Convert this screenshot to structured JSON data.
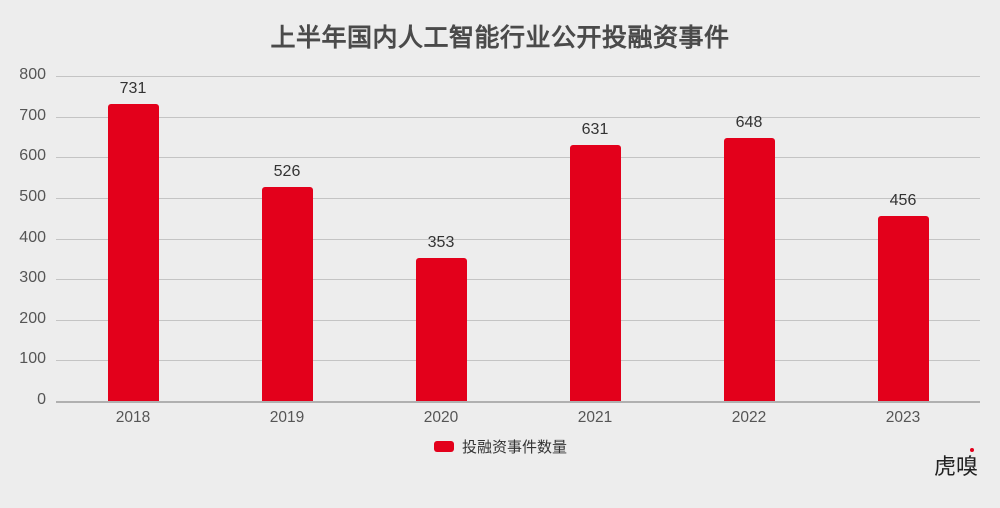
{
  "title": "上半年国内人工智能行业公开投融资事件",
  "legend": {
    "label": "投融资事件数量",
    "color": "#e3001b"
  },
  "watermark": "虎嗅",
  "y_ticks": [
    "800",
    "700",
    "600",
    "500",
    "400",
    "300",
    "200",
    "100",
    "0"
  ],
  "bars": [
    {
      "year": "2018",
      "value": "731"
    },
    {
      "year": "2019",
      "value": "526"
    },
    {
      "year": "2020",
      "value": "353"
    },
    {
      "year": "2021",
      "value": "631"
    },
    {
      "year": "2022",
      "value": "648"
    },
    {
      "year": "2023",
      "value": "456"
    }
  ],
  "chart_data": {
    "type": "bar",
    "title": "上半年国内人工智能行业公开投融资事件",
    "categories": [
      "2018",
      "2019",
      "2020",
      "2021",
      "2022",
      "2023"
    ],
    "series": [
      {
        "name": "投融资事件数量",
        "values": [
          731,
          526,
          353,
          631,
          648,
          456
        ],
        "color": "#e3001b"
      }
    ],
    "xlabel": "",
    "ylabel": "",
    "ylim": [
      0,
      800
    ],
    "yticks": [
      0,
      100,
      200,
      300,
      400,
      500,
      600,
      700,
      800
    ],
    "grid": true,
    "data_labels": true,
    "legend_position": "bottom"
  }
}
